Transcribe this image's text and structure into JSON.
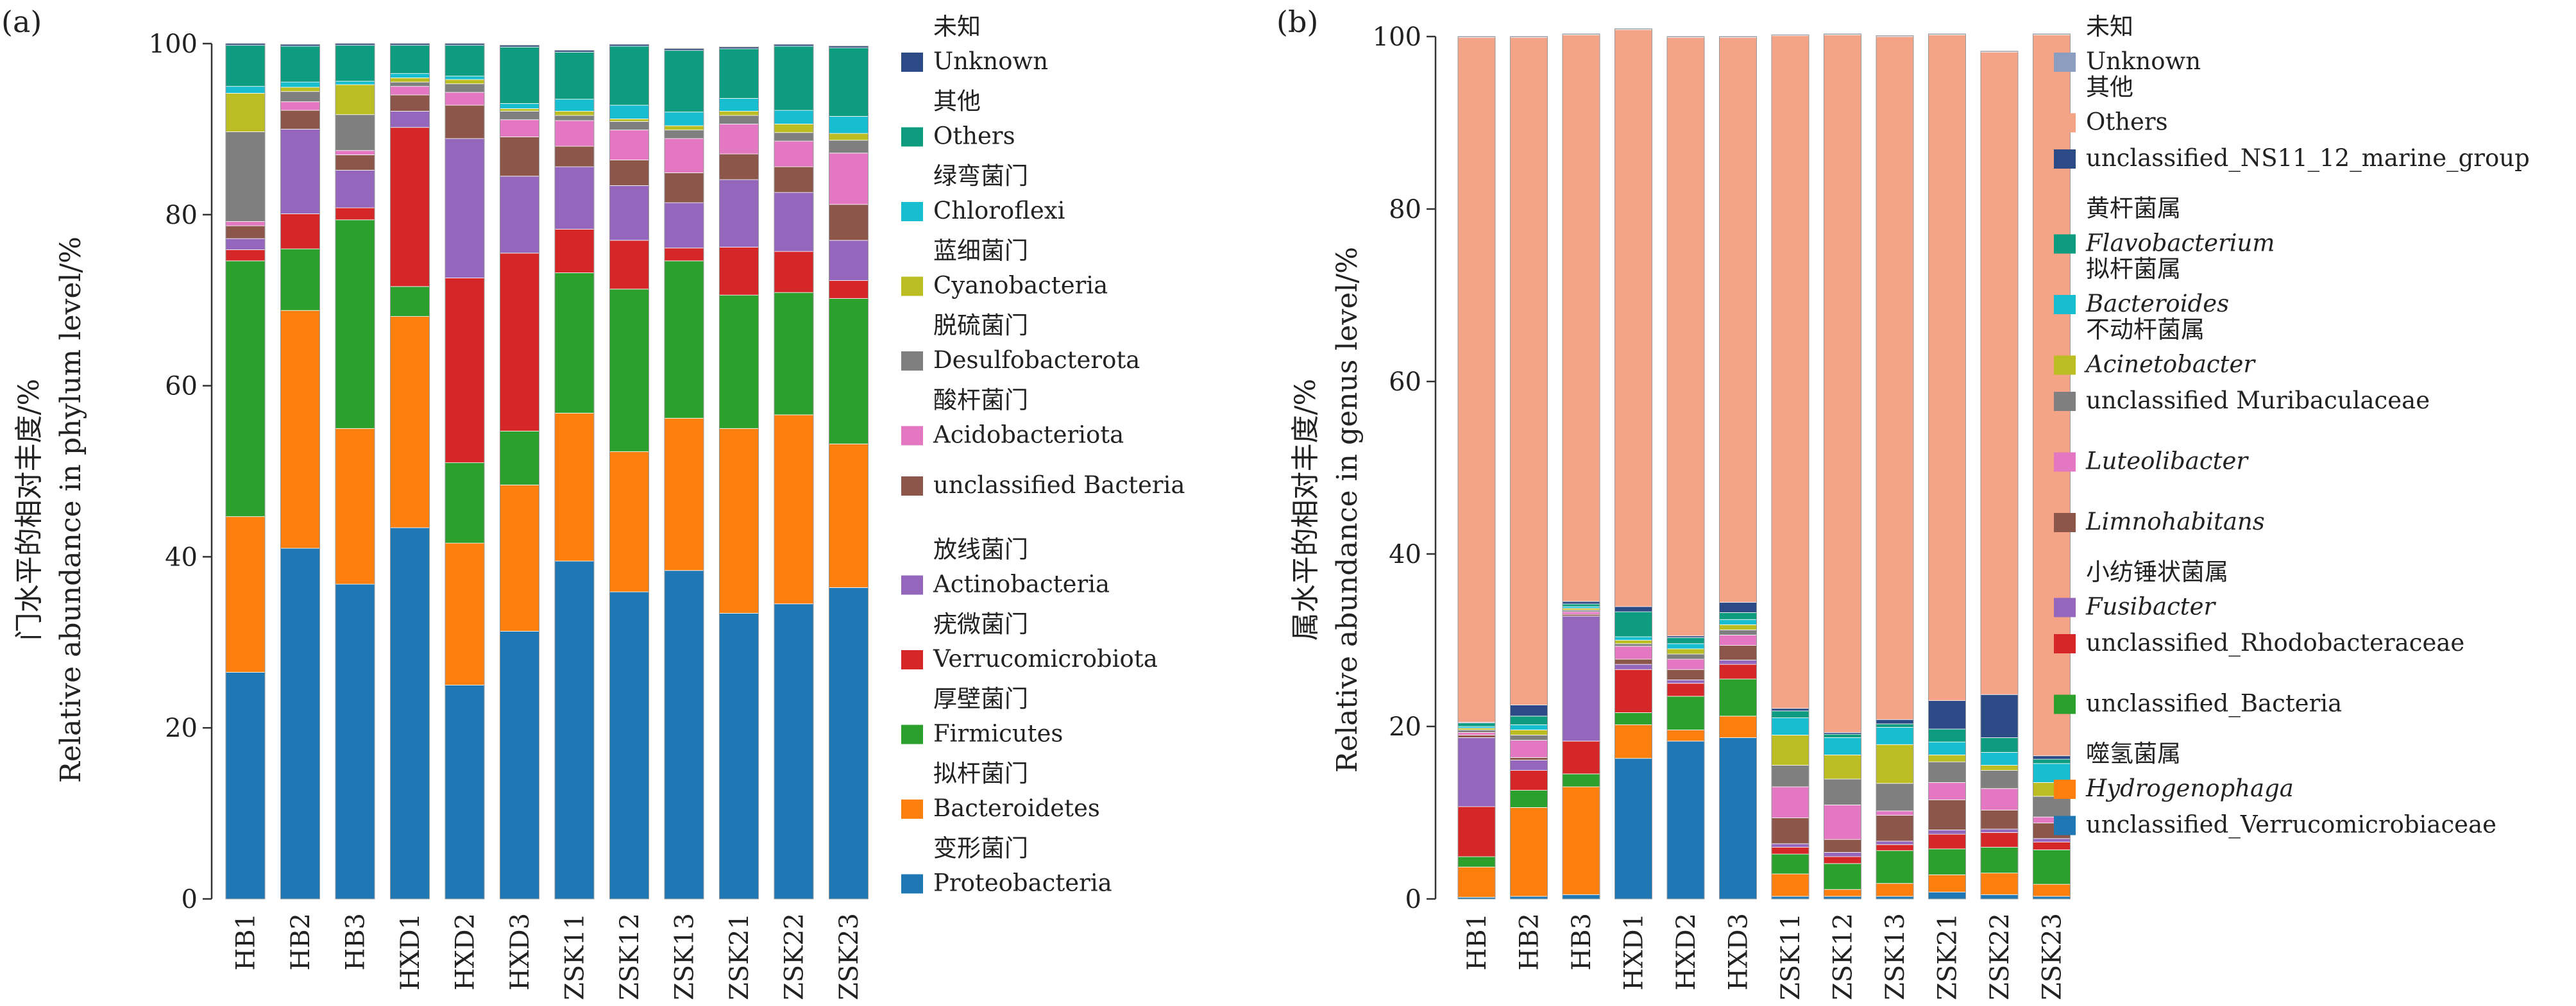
{
  "chart_data": [
    {
      "type": "bar",
      "stacked": true,
      "panel_label": "(a)",
      "ylabel_cn": "门水平的相对丰度/%",
      "ylabel_en": "Relative abundance in phylum level/%",
      "ylim": [
        0,
        100
      ],
      "yticks": [
        "0",
        "20",
        "40",
        "60",
        "80",
        "100"
      ],
      "categories": [
        "HB1",
        "HB2",
        "HB3",
        "HXD1",
        "HXD2",
        "HXD3",
        "ZSK11",
        "ZSK12",
        "ZSK13",
        "ZSK21",
        "ZSK22",
        "ZSK23"
      ],
      "series": [
        {
          "name": "Proteobacteria",
          "name_cn": "变形菌门",
          "color": "#1f77b4",
          "values": [
            26.5,
            41.0,
            36.8,
            43.4,
            25.0,
            31.3,
            39.5,
            35.9,
            38.4,
            33.4,
            34.5,
            36.4
          ]
        },
        {
          "name": "Bacteroidetes",
          "name_cn": "拟杆菌门",
          "color": "#ff7f0e",
          "values": [
            18.2,
            27.8,
            18.2,
            24.7,
            16.6,
            17.1,
            17.3,
            16.4,
            17.8,
            21.6,
            22.1,
            16.8
          ]
        },
        {
          "name": "Firmicutes",
          "name_cn": "厚壁菌门",
          "color": "#2ca02c",
          "values": [
            29.9,
            7.2,
            24.4,
            3.5,
            9.4,
            6.3,
            16.4,
            19.0,
            18.4,
            15.6,
            14.3,
            17.0
          ]
        },
        {
          "name": "Verrucomicrobiota",
          "name_cn": "疣微菌门",
          "color": "#d62728",
          "values": [
            1.3,
            4.1,
            1.4,
            18.6,
            21.6,
            20.8,
            5.1,
            5.7,
            1.5,
            5.6,
            4.8,
            2.1
          ]
        },
        {
          "name": "Actinobacteria",
          "name_cn": "放线菌门",
          "color": "#9467bd",
          "values": [
            1.3,
            9.9,
            4.4,
            1.9,
            16.3,
            9.0,
            7.3,
            6.4,
            5.3,
            7.9,
            6.9,
            4.7
          ]
        },
        {
          "name": "unclassified Bacteria",
          "color": "#8c564b",
          "values": [
            1.5,
            2.2,
            1.8,
            1.9,
            3.9,
            4.6,
            2.4,
            3.0,
            3.5,
            3.0,
            3.0,
            4.2
          ]
        },
        {
          "name": "Acidobacteriota",
          "name_cn": "酸杆菌门",
          "color": "#e377c2",
          "values": [
            0.5,
            1.0,
            0.5,
            1.0,
            1.5,
            2.0,
            3.0,
            3.5,
            4.0,
            3.5,
            3.0,
            6.0
          ]
        },
        {
          "name": "Desulfobacterota",
          "name_cn": "脱硫菌门",
          "color": "#7f7f7f",
          "values": [
            10.5,
            1.2,
            4.2,
            0.5,
            1.0,
            1.0,
            0.6,
            1.0,
            1.0,
            1.0,
            1.0,
            1.5
          ]
        },
        {
          "name": "Cyanobacteria",
          "name_cn": "蓝细菌门",
          "color": "#bcbd22",
          "values": [
            4.5,
            0.5,
            3.5,
            0.5,
            0.5,
            0.3,
            0.5,
            0.3,
            0.5,
            0.5,
            1.0,
            0.8
          ]
        },
        {
          "name": "Chloroflexi",
          "name_cn": "绿弯菌门",
          "color": "#17becf",
          "values": [
            0.8,
            0.6,
            0.4,
            0.5,
            0.4,
            0.6,
            1.4,
            1.6,
            1.6,
            1.5,
            1.6,
            2.0
          ]
        },
        {
          "name": "Others",
          "name_cn": "其他",
          "color": "#0e9c80",
          "values": [
            4.8,
            4.2,
            4.2,
            3.3,
            3.6,
            6.6,
            5.5,
            6.9,
            7.2,
            5.8,
            7.5,
            8.0
          ]
        },
        {
          "name": "Unknown",
          "name_cn": "未知",
          "color": "#2c4a85",
          "values": [
            0.2,
            0.2,
            0.2,
            0.2,
            0.2,
            0.2,
            0.2,
            0.2,
            0.2,
            0.2,
            0.2,
            0.2
          ]
        }
      ],
      "legend": [
        {
          "cn": "未知",
          "en": "Unknown",
          "color": "#2c4a85",
          "italic": false
        },
        {
          "cn": "其他",
          "en": "Others",
          "color": "#0e9c80",
          "italic": false
        },
        {
          "cn": "绿弯菌门",
          "en": "Chloroflexi",
          "color": "#17becf",
          "italic": false
        },
        {
          "cn": "蓝细菌门",
          "en": "Cyanobacteria",
          "color": "#bcbd22",
          "italic": false
        },
        {
          "cn": "脱硫菌门",
          "en": "Desulfobacterota",
          "color": "#7f7f7f",
          "italic": false
        },
        {
          "cn": "酸杆菌门",
          "en": "Acidobacteriota",
          "color": "#e377c2",
          "italic": false
        },
        {
          "cn": "",
          "en": "unclassified Bacteria",
          "color": "#8c564b",
          "italic": false
        },
        {
          "cn": "放线菌门",
          "en": "Actinobacteria",
          "color": "#9467bd",
          "italic": false
        },
        {
          "cn": "疣微菌门",
          "en": "Verrucomicrobiota",
          "color": "#d62728",
          "italic": false
        },
        {
          "cn": "厚壁菌门",
          "en": "Firmicutes",
          "color": "#2ca02c",
          "italic": false
        },
        {
          "cn": "拟杆菌门",
          "en": "Bacteroidetes",
          "color": "#ff7f0e",
          "italic": false
        },
        {
          "cn": "变形菌门",
          "en": "Proteobacteria",
          "color": "#1f77b4",
          "italic": false
        }
      ]
    },
    {
      "type": "bar",
      "stacked": true,
      "panel_label": "(b)",
      "ylabel_cn": "属水平的相对丰度/%",
      "ylabel_en": "Relative abundance in genus level/%",
      "ylim": [
        0,
        100
      ],
      "yticks": [
        "0",
        "20",
        "40",
        "60",
        "80",
        "100"
      ],
      "categories": [
        "HB1",
        "HB2",
        "HB3",
        "HXD1",
        "HXD2",
        "HXD3",
        "ZSK11",
        "ZSK12",
        "ZSK13",
        "ZSK21",
        "ZSK22",
        "ZSK23"
      ],
      "series": [
        {
          "name": "unclassified_Verrucomicrobiaceae",
          "color": "#1f77b4",
          "values": [
            0.2,
            0.3,
            0.5,
            16.3,
            18.3,
            18.7,
            0.3,
            0.3,
            0.3,
            0.8,
            0.5,
            0.3
          ]
        },
        {
          "name": "Hydrogenophaga",
          "name_cn": "噬氢菌属",
          "color": "#ff7f0e",
          "values": [
            3.5,
            10.3,
            12.5,
            3.9,
            1.3,
            2.5,
            2.6,
            0.8,
            1.5,
            2.0,
            2.5,
            1.4
          ]
        },
        {
          "name": "unclassified_Bacteria",
          "color": "#2ca02c",
          "values": [
            1.2,
            2.0,
            1.5,
            1.4,
            3.9,
            4.3,
            2.3,
            3.0,
            3.8,
            3.0,
            3.0,
            4.0
          ]
        },
        {
          "name": "unclassified_Rhodobacteraceae",
          "color": "#d62728",
          "values": [
            5.8,
            2.3,
            3.8,
            5.0,
            1.5,
            1.7,
            0.8,
            0.8,
            0.7,
            1.7,
            1.7,
            0.9
          ]
        },
        {
          "name": "Fusibacter",
          "name_cn": "小纺锤状菌属",
          "color": "#9467bd",
          "values": [
            8.0,
            1.2,
            14.5,
            0.6,
            0.4,
            0.5,
            0.4,
            0.5,
            0.4,
            0.5,
            0.4,
            0.4
          ]
        },
        {
          "name": "Limnohabitans",
          "color": "#8c564b",
          "values": [
            0.3,
            0.3,
            0.2,
            0.6,
            1.2,
            1.7,
            3.0,
            1.5,
            3.0,
            3.5,
            2.2,
            1.8
          ]
        },
        {
          "name": "Luteolibacter",
          "color": "#e377c2",
          "values": [
            0.3,
            2.0,
            0.3,
            1.5,
            1.2,
            1.2,
            3.6,
            4.0,
            0.5,
            2.0,
            2.5,
            0.7
          ]
        },
        {
          "name": "unclassified Muribaculaceae",
          "color": "#7f7f7f",
          "values": [
            0.3,
            0.6,
            0.2,
            0.3,
            0.6,
            0.6,
            2.5,
            3.0,
            3.2,
            2.4,
            2.1,
            2.4
          ]
        },
        {
          "name": "Acinetobacter",
          "name_cn": "不动杆菌属",
          "color": "#bcbd22",
          "values": [
            0.2,
            0.6,
            0.2,
            0.4,
            0.6,
            0.6,
            3.5,
            2.8,
            4.5,
            0.8,
            0.6,
            1.6
          ]
        },
        {
          "name": "Bacteroides",
          "name_cn": "拟杆菌属",
          "color": "#17becf",
          "values": [
            0.2,
            0.6,
            0.2,
            0.4,
            0.6,
            0.6,
            2.0,
            2.0,
            2.0,
            1.5,
            1.5,
            2.2
          ]
        },
        {
          "name": "Flavobacterium",
          "name_cn": "黄杆菌属",
          "color": "#0e9c80",
          "values": [
            0.4,
            1.0,
            0.3,
            2.9,
            0.7,
            0.8,
            0.8,
            0.4,
            0.4,
            1.5,
            1.7,
            0.5
          ]
        },
        {
          "name": "unclassified_NS11_12_marine_group",
          "color": "#2c4a85",
          "values": [
            0.1,
            1.3,
            0.3,
            0.6,
            0.2,
            1.2,
            0.3,
            0.2,
            0.5,
            3.3,
            5.0,
            0.4
          ]
        },
        {
          "name": "Others",
          "name_cn": "其他",
          "color": "#f4a386",
          "values": [
            79.4,
            77.4,
            65.7,
            66.9,
            69.4,
            65.5,
            78.0,
            80.9,
            79.2,
            77.2,
            74.5,
            83.6
          ]
        },
        {
          "name": "Unknown",
          "name_cn": "未知",
          "color": "#8c9ec0",
          "values": [
            0.1,
            0.1,
            0.1,
            0.1,
            0.1,
            0.1,
            0.1,
            0.1,
            0.1,
            0.1,
            0.1,
            0.1
          ]
        }
      ],
      "legend": [
        {
          "cn": "未知",
          "en": "Unknown",
          "color": "#8c9ec0",
          "italic": false
        },
        {
          "cn": "其他",
          "en": "Others",
          "color": "#f4a386",
          "italic": false
        },
        {
          "cn": "",
          "en": "unclassified_NS11_12_marine_group",
          "color": "#2c4a85",
          "italic": false
        },
        {
          "cn": "黄杆菌属",
          "en": "Flavobacterium",
          "color": "#0e9c80",
          "italic": true
        },
        {
          "cn": "拟杆菌属",
          "en": "Bacteroides",
          "color": "#17becf",
          "italic": true
        },
        {
          "cn": "不动杆菌属",
          "en": "Acinetobacter",
          "color": "#bcbd22",
          "italic": true
        },
        {
          "cn": "",
          "en": "unclassified Muribaculaceae",
          "color": "#7f7f7f",
          "italic": false
        },
        {
          "cn": "",
          "en": "Luteolibacter",
          "color": "#e377c2",
          "italic": true
        },
        {
          "cn": "",
          "en": "Limnohabitans",
          "color": "#8c564b",
          "italic": true
        },
        {
          "cn": "小纺锤状菌属",
          "en": "Fusibacter",
          "color": "#9467bd",
          "italic": true
        },
        {
          "cn": "",
          "en": "unclassified_Rhodobacteraceae",
          "color": "#d62728",
          "italic": false
        },
        {
          "cn": "",
          "en": "unclassified_Bacteria",
          "color": "#2ca02c",
          "italic": false
        },
        {
          "cn": "噬氢菌属",
          "en": "Hydrogenophaga",
          "color": "#ff7f0e",
          "italic": true
        },
        {
          "cn": "",
          "en": "unclassified_Verrucomicrobiaceae",
          "color": "#1f77b4",
          "italic": false
        }
      ]
    }
  ]
}
